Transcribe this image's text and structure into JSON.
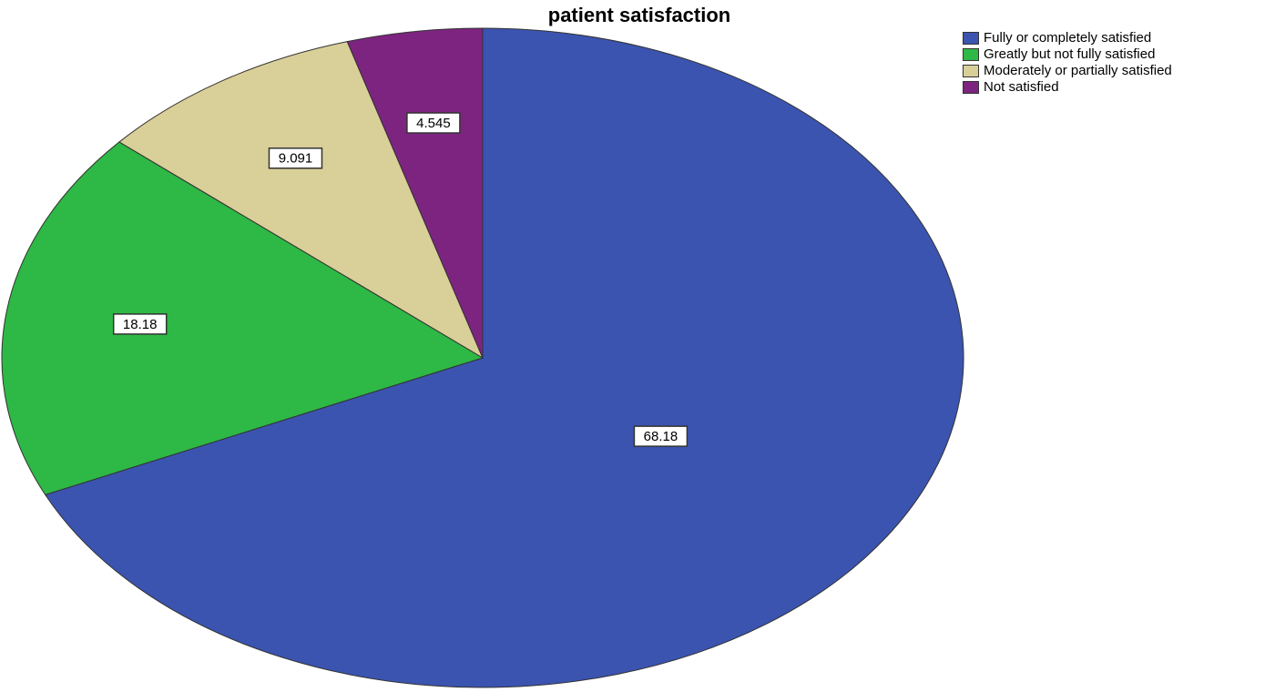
{
  "chart_data": {
    "type": "pie",
    "title": "patient satisfaction",
    "categories": [
      "Fully or completely satisfied",
      "Greatly but not fully satisfied",
      "Moderately or partially satisfied",
      "Not satisfied"
    ],
    "values": [
      68.18,
      18.18,
      9.091,
      4.545
    ],
    "data_labels": [
      "68.18",
      "18.18",
      "9.091",
      "4.545"
    ],
    "colors": [
      "#3b54b0",
      "#2eb845",
      "#d9cf98",
      "#7d2480"
    ],
    "legend_position": "top-right",
    "start_angle": "12 o'clock",
    "direction": "clockwise"
  }
}
